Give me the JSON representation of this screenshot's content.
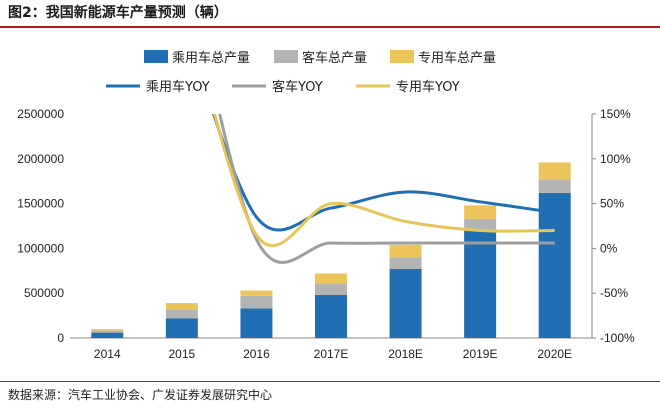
{
  "figure": {
    "title": "图2：我国新能源车产量预测（辆）",
    "source": "数据来源：汽车工业协会、广发证券发展研究中心"
  },
  "chart_data": {
    "type": "bar",
    "stacked": true,
    "categories": [
      "2014",
      "2015",
      "2016",
      "2017E",
      "2018E",
      "2019E",
      "2020E"
    ],
    "ylim_left": [
      0,
      2500000
    ],
    "yticks_left": [
      "0",
      "500000",
      "1000000",
      "1500000",
      "2000000",
      "2500000"
    ],
    "ylim_right": [
      -100,
      150
    ],
    "yticks_right": [
      "-100%",
      "-50%",
      "0%",
      "50%",
      "100%",
      "150%"
    ],
    "series": [
      {
        "name": "乘用车总产量",
        "kind": "bar",
        "axis": "left",
        "color": "#1f6fb2",
        "values": [
          60000,
          220000,
          330000,
          480000,
          770000,
          1200000,
          1620000
        ]
      },
      {
        "name": "客车总产量",
        "kind": "bar",
        "axis": "left",
        "color": "#b4b4b4",
        "values": [
          22000,
          100000,
          140000,
          130000,
          130000,
          130000,
          150000
        ]
      },
      {
        "name": "专用车总产量",
        "kind": "bar",
        "axis": "left",
        "color": "#ecc45c",
        "values": [
          18000,
          70000,
          60000,
          110000,
          140000,
          150000,
          190000
        ]
      },
      {
        "name": "乘用车YOY",
        "kind": "line",
        "axis": "right",
        "color": "#1f6fb2",
        "values": [
          null,
          260,
          35,
          45,
          63,
          52,
          40
        ]
      },
      {
        "name": "客车YOY",
        "kind": "line",
        "axis": "right",
        "color": "#9e9e9e",
        "values": [
          null,
          340,
          10,
          6,
          6,
          6,
          6
        ]
      },
      {
        "name": "专用车YOY",
        "kind": "line",
        "axis": "right",
        "color": "#e6c55a",
        "values": [
          null,
          290,
          15,
          50,
          30,
          20,
          20
        ]
      }
    ],
    "legend_position": "top"
  }
}
